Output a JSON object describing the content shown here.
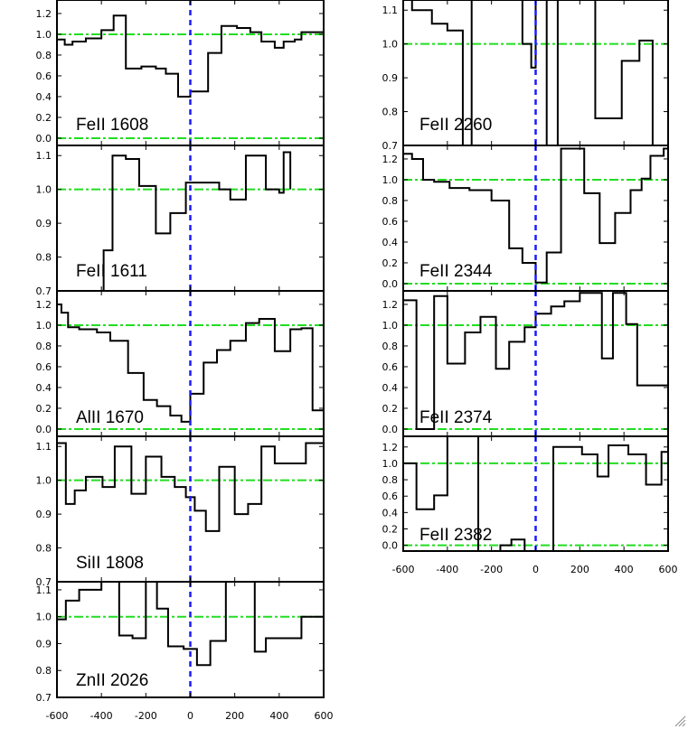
{
  "colors": {
    "frame": "#000000",
    "spectrum": "#000000",
    "continuum": "#22dd22",
    "zero_velocity": "#1a1aff",
    "background": "#ffffff"
  },
  "icons": {
    "resize_grip": "resize-grip-icon"
  },
  "chart_data": [
    {
      "type": "line",
      "label": "FeII 1608",
      "y_ticks": [
        "0.0",
        "0.2",
        "0.4",
        "0.6",
        "0.8",
        "1.0",
        "1.2"
      ],
      "x_ticks": [],
      "xlim": [
        -600,
        600
      ],
      "ylim": [
        -0.07,
        1.33
      ],
      "reference_lines": [
        1.0,
        0.0
      ],
      "zero_velocity_line": 0,
      "x": [
        -600,
        -565,
        -530,
        -470,
        -400,
        -345,
        -290,
        -220,
        -155,
        -110,
        -55,
        0,
        80,
        140,
        210,
        270,
        320,
        380,
        420,
        470,
        500,
        600
      ],
      "y": [
        0.95,
        0.9,
        0.93,
        0.96,
        1.04,
        1.18,
        0.67,
        0.69,
        0.67,
        0.62,
        0.4,
        0.45,
        0.82,
        1.08,
        1.06,
        1.02,
        0.93,
        0.87,
        0.93,
        0.95,
        1.02,
        1.02
      ]
    },
    {
      "type": "line",
      "label": "FeII 1611",
      "y_ticks": [
        "0.7",
        "0.8",
        "0.9",
        "1.0",
        "1.1"
      ],
      "x_ticks": [],
      "xlim": [
        -600,
        600
      ],
      "ylim": [
        0.7,
        1.13
      ],
      "reference_lines": [
        1.0
      ],
      "zero_velocity_line": 0,
      "x": [
        -600,
        -540,
        -470,
        -390,
        -350,
        -290,
        -230,
        -155,
        -90,
        -20,
        70,
        130,
        180,
        250,
        340,
        400,
        420,
        450
      ],
      "y": [
        0.7,
        0.7,
        0.7,
        0.82,
        1.1,
        1.09,
        1.01,
        0.87,
        0.93,
        1.02,
        1.02,
        1.0,
        0.97,
        1.1,
        1.0,
        0.99,
        1.11,
        1.0
      ]
    },
    {
      "type": "line",
      "label": "AlII 1670",
      "y_ticks": [
        "0.0",
        "0.2",
        "0.4",
        "0.6",
        "0.8",
        "1.0",
        "1.2"
      ],
      "x_ticks": [],
      "xlim": [
        -600,
        600
      ],
      "ylim": [
        -0.07,
        1.33
      ],
      "reference_lines": [
        1.0,
        0.0
      ],
      "zero_velocity_line": 0,
      "x": [
        -600,
        -580,
        -550,
        -500,
        -420,
        -360,
        -280,
        -210,
        -150,
        -90,
        -40,
        0,
        60,
        120,
        180,
        250,
        310,
        380,
        450,
        500,
        550,
        600
      ],
      "y": [
        1.2,
        1.12,
        0.98,
        0.96,
        0.93,
        0.85,
        0.54,
        0.28,
        0.22,
        0.13,
        0.07,
        0.34,
        0.64,
        0.76,
        0.85,
        1.02,
        1.06,
        0.75,
        0.96,
        0.97,
        0.18,
        0.18
      ]
    },
    {
      "type": "line",
      "label": "SiII 1808",
      "y_ticks": [
        "0.7",
        "0.8",
        "0.9",
        "1.0",
        "1.1"
      ],
      "x_ticks": [],
      "xlim": [
        -600,
        600
      ],
      "ylim": [
        0.7,
        1.13
      ],
      "reference_lines": [
        1.0
      ],
      "zero_velocity_line": 0,
      "x": [
        -600,
        -560,
        -520,
        -470,
        -395,
        -340,
        -265,
        -200,
        -130,
        -70,
        -20,
        20,
        70,
        130,
        200,
        260,
        320,
        380,
        450,
        520,
        580,
        600
      ],
      "y": [
        1.11,
        0.93,
        0.97,
        1.01,
        0.98,
        1.1,
        0.96,
        1.07,
        1.01,
        0.98,
        0.95,
        0.91,
        0.85,
        1.04,
        0.9,
        0.93,
        1.1,
        1.05,
        1.05,
        1.11,
        1.11,
        1.11
      ]
    },
    {
      "type": "line",
      "label": "ZnII 2026",
      "y_ticks": [
        "0.7",
        "0.8",
        "0.9",
        "1.0",
        "1.1"
      ],
      "x_ticks": [
        "-600",
        "-400",
        "-200",
        "0",
        "200",
        "400",
        "600"
      ],
      "xlim": [
        -600,
        600
      ],
      "ylim": [
        0.7,
        1.13
      ],
      "reference_lines": [
        1.0
      ],
      "zero_velocity_line": 0,
      "x": [
        -600,
        -560,
        -500,
        -460,
        -400,
        -320,
        -260,
        -200,
        -150,
        -100,
        -30,
        30,
        90,
        160,
        220,
        290,
        340,
        400,
        500,
        580,
        600
      ],
      "y": [
        0.99,
        1.06,
        1.1,
        1.1,
        1.14,
        0.93,
        0.92,
        1.13,
        1.03,
        0.89,
        0.88,
        0.82,
        0.91,
        1.13,
        1.13,
        0.87,
        0.92,
        0.92,
        1.0,
        1.0,
        1.0
      ]
    },
    {
      "type": "line",
      "label": "FeII 2260",
      "y_ticks": [
        "0.7",
        "0.8",
        "0.9",
        "1.0",
        "1.1"
      ],
      "x_ticks": [],
      "xlim": [
        -600,
        600
      ],
      "ylim": [
        0.7,
        1.13
      ],
      "reference_lines": [
        1.0
      ],
      "zero_velocity_line": 0,
      "x": [
        -600,
        -560,
        -470,
        -400,
        -330,
        -290,
        -250,
        -100,
        -60,
        -20,
        0,
        20,
        50,
        100,
        150,
        270,
        320,
        390,
        470,
        530,
        600
      ],
      "y": [
        1.14,
        1.1,
        1.06,
        1.04,
        0.7,
        1.14,
        1.14,
        1.14,
        1.0,
        0.93,
        1.14,
        1.14,
        0.7,
        1.14,
        1.14,
        0.78,
        0.78,
        0.95,
        1.01,
        0.7,
        0.7
      ]
    },
    {
      "type": "line",
      "label": "FeII 2344",
      "y_ticks": [
        "0.0",
        "0.2",
        "0.4",
        "0.6",
        "0.8",
        "1.0",
        "1.2"
      ],
      "x_ticks": [],
      "xlim": [
        -600,
        600
      ],
      "ylim": [
        -0.07,
        1.33
      ],
      "reference_lines": [
        1.0,
        0.0
      ],
      "zero_velocity_line": 0,
      "x": [
        -600,
        -560,
        -510,
        -460,
        -390,
        -300,
        -200,
        -120,
        -60,
        0,
        50,
        115,
        220,
        290,
        360,
        430,
        480,
        520,
        580,
        600
      ],
      "y": [
        1.25,
        1.2,
        1.0,
        0.98,
        0.92,
        0.9,
        0.8,
        0.34,
        0.2,
        0.01,
        0.3,
        1.3,
        0.87,
        0.39,
        0.68,
        0.9,
        1.01,
        1.23,
        1.3,
        1.3
      ]
    },
    {
      "type": "line",
      "label": "FeII 2374",
      "y_ticks": [
        "0.0",
        "0.2",
        "0.4",
        "0.6",
        "0.8",
        "1.0",
        "1.2"
      ],
      "x_ticks": [],
      "xlim": [
        -600,
        600
      ],
      "ylim": [
        -0.07,
        1.33
      ],
      "reference_lines": [
        1.0,
        0.0
      ],
      "zero_velocity_line": 0,
      "x": [
        -600,
        -540,
        -460,
        -400,
        -320,
        -250,
        -180,
        -120,
        -50,
        0,
        70,
        130,
        200,
        300,
        350,
        410,
        460,
        530,
        600
      ],
      "y": [
        1.24,
        0.0,
        1.28,
        0.63,
        0.93,
        1.08,
        0.58,
        0.84,
        0.98,
        1.11,
        1.18,
        1.23,
        1.31,
        0.68,
        1.31,
        1.01,
        0.42,
        0.42,
        0.42
      ]
    },
    {
      "type": "line",
      "label": "FeII 2382",
      "y_ticks": [
        "0.0",
        "0.2",
        "0.4",
        "0.6",
        "0.8",
        "1.0",
        "1.2"
      ],
      "x_ticks": [
        "-600",
        "-400",
        "-200",
        "0",
        "200",
        "400",
        "600"
      ],
      "xlim": [
        -600,
        600
      ],
      "ylim": [
        -0.07,
        1.33
      ],
      "reference_lines": [
        1.0,
        0.0
      ],
      "zero_velocity_line": 0,
      "x": [
        -600,
        -540,
        -460,
        -400,
        -260,
        -160,
        -110,
        -50,
        0,
        80,
        210,
        280,
        330,
        420,
        500,
        570,
        600
      ],
      "y": [
        1.0,
        0.44,
        0.61,
        1.33,
        -0.07,
        0.0,
        0.07,
        -0.07,
        -0.07,
        1.2,
        1.11,
        0.84,
        1.22,
        1.11,
        0.74,
        1.14,
        0.57
      ]
    }
  ]
}
